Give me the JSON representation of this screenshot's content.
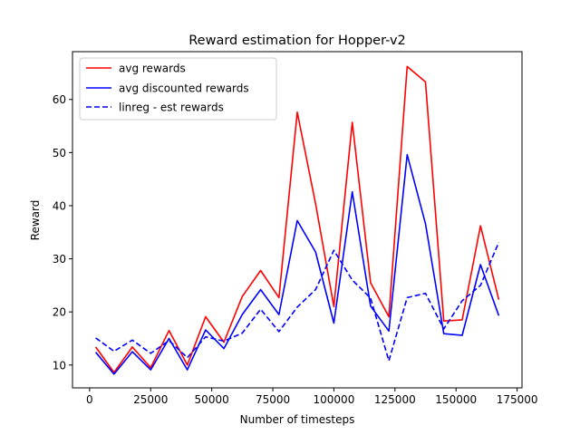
{
  "chart_data": {
    "type": "line",
    "title": "Reward estimation for Hopper-v2",
    "xlabel": "Number of timesteps",
    "ylabel": "Reward",
    "xlim": [
      -7000,
      177000
    ],
    "ylim": [
      5.7,
      69
    ],
    "xticks": [
      0,
      25000,
      50000,
      75000,
      100000,
      125000,
      150000,
      175000
    ],
    "yticks": [
      10,
      20,
      30,
      40,
      50,
      60
    ],
    "legend_position": "top-left",
    "x": [
      2500,
      10000,
      17500,
      25000,
      32500,
      40000,
      47500,
      55000,
      62500,
      70000,
      77500,
      85000,
      92500,
      100000,
      107500,
      115000,
      122500,
      130000,
      137500,
      145000,
      152500,
      160000,
      167500
    ],
    "series": [
      {
        "name": "avg rewards",
        "color": "#ff0000",
        "dash": "solid",
        "values": [
          13.4,
          8.6,
          13.4,
          9.5,
          16.5,
          10.0,
          19.1,
          14.3,
          22.9,
          27.8,
          22.7,
          57.6,
          40.4,
          21.0,
          55.7,
          25.5,
          19.1,
          66.2,
          63.3,
          18.3,
          18.5,
          36.2,
          22.3
        ]
      },
      {
        "name": "avg discounted rewards",
        "color": "#0000ff",
        "dash": "solid",
        "values": [
          12.4,
          8.3,
          12.5,
          9.1,
          15.0,
          9.1,
          16.6,
          13.1,
          19.5,
          24.2,
          19.5,
          37.2,
          31.3,
          17.9,
          42.6,
          21.1,
          16.4,
          49.6,
          36.6,
          15.9,
          15.6,
          28.9,
          19.3
        ]
      },
      {
        "name": "linreg - est rewards",
        "color": "#0000ff",
        "dash": "dashed",
        "values": [
          15.1,
          12.6,
          14.7,
          12.2,
          14.6,
          11.4,
          15.3,
          14.5,
          16.0,
          20.5,
          16.3,
          20.9,
          24.2,
          31.6,
          26.0,
          22.6,
          10.8,
          22.7,
          23.5,
          16.8,
          22.1,
          25.0,
          33.1
        ]
      }
    ]
  }
}
